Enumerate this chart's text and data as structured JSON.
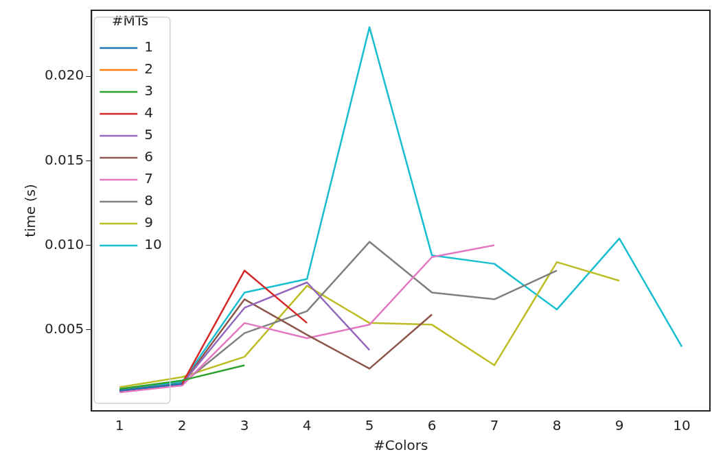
{
  "chart_data": {
    "type": "line",
    "xlabel": "#Colors",
    "ylabel": "time (s)",
    "legend_title": "#MTs",
    "legend": "top left",
    "grid": false,
    "marker": "none",
    "line_style": "solid",
    "x": [
      1,
      2,
      3,
      4,
      5,
      6,
      7,
      8,
      9,
      10
    ],
    "xlim": [
      0.55,
      10.45
    ],
    "xticks": [
      1,
      2,
      3,
      4,
      5,
      6,
      7,
      8,
      9,
      10
    ],
    "ylim": [
      0.0002,
      0.0239
    ],
    "yticks": [
      0.005,
      {
        "value": 0.01,
        "label": "0.010"
      },
      0.015,
      {
        "value": 0.02,
        "label": "0.020"
      }
    ],
    "series": [
      {
        "name": "1",
        "color": "#1f77b4",
        "values": [
          0.0014,
          0.0018,
          null,
          null,
          null,
          null,
          null,
          null,
          null,
          null
        ]
      },
      {
        "name": "2",
        "color": "#ff7f0e",
        "values": [
          null,
          null,
          null,
          null,
          null,
          null,
          null,
          null,
          null,
          null
        ]
      },
      {
        "name": "3",
        "color": "#2ca02c",
        "values": [
          0.0015,
          0.002,
          0.0029,
          null,
          null,
          null,
          null,
          null,
          null,
          null
        ]
      },
      {
        "name": "4",
        "color": "#d62728",
        "values": [
          0.0014,
          0.0018,
          0.0085,
          0.0054,
          null,
          null,
          null,
          null,
          null,
          null
        ]
      },
      {
        "name": "5",
        "color": "#9467bd",
        "values": [
          0.0014,
          0.0018,
          0.0063,
          0.0078,
          0.0038,
          null,
          null,
          null,
          null,
          null
        ]
      },
      {
        "name": "6",
        "color": "#8c564b",
        "values": [
          0.0014,
          0.0018,
          0.0068,
          0.0047,
          0.0027,
          0.0059,
          null,
          null,
          null,
          null
        ]
      },
      {
        "name": "7",
        "color": "#e377c2",
        "values": [
          0.0013,
          0.0017,
          0.0054,
          0.0045,
          0.0053,
          0.0093,
          0.01,
          null,
          null,
          null
        ]
      },
      {
        "name": "8",
        "color": "#7f7f7f",
        "values": [
          0.0014,
          0.0018,
          0.0048,
          0.0061,
          0.0102,
          0.0072,
          0.0068,
          0.0085,
          null,
          null
        ]
      },
      {
        "name": "9",
        "color": "#bcbd22",
        "values": [
          0.0016,
          0.0022,
          0.0034,
          0.0076,
          0.0054,
          0.0053,
          0.0029,
          0.009,
          0.0079,
          null
        ]
      },
      {
        "name": "10",
        "color": "#17becf",
        "values": [
          0.0015,
          0.0019,
          0.0072,
          0.008,
          0.0229,
          0.0094,
          0.0089,
          0.0062,
          0.0104,
          0.004
        ]
      }
    ]
  }
}
